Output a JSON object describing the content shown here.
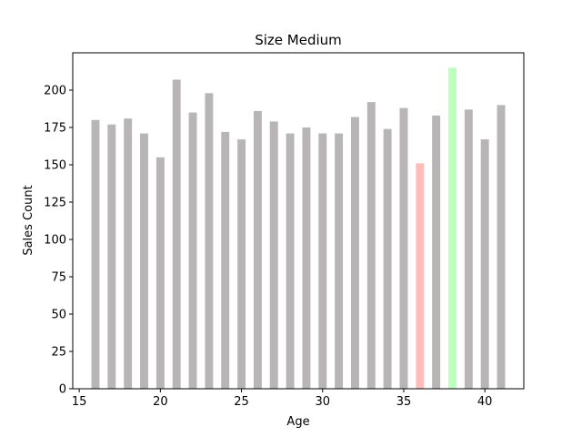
{
  "chart_data": {
    "type": "bar",
    "title": "Size Medium",
    "xlabel": "Age",
    "ylabel": "Sales Count",
    "xlim": [
      14.6,
      42.4
    ],
    "ylim": [
      0,
      225
    ],
    "xticks": [
      15,
      20,
      25,
      30,
      35,
      40
    ],
    "yticks": [
      0,
      25,
      50,
      75,
      100,
      125,
      150,
      175,
      200
    ],
    "grid": false,
    "x": [
      16,
      17,
      18,
      19,
      20,
      21,
      22,
      23,
      24,
      25,
      26,
      27,
      28,
      29,
      30,
      31,
      32,
      33,
      34,
      35,
      36,
      37,
      38,
      39,
      40,
      41
    ],
    "values": [
      180,
      177,
      181,
      171,
      155,
      207,
      185,
      198,
      172,
      167,
      186,
      179,
      171,
      175,
      171,
      171,
      182,
      192,
      174,
      188,
      151,
      183,
      215,
      187,
      167,
      190
    ],
    "bar_color": "#b7b5b5",
    "highlights": [
      {
        "x": 36,
        "color": "#ffbdb7"
      },
      {
        "x": 38,
        "color": "#bdffbd"
      }
    ]
  }
}
